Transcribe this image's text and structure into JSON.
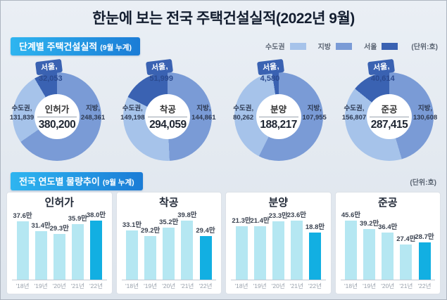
{
  "title": "한눈에 보는 전국 주택건설실적(2022년 9월)",
  "stage_section": {
    "header": "단계별 주택건설실적",
    "header_sub": "(9월 누계)"
  },
  "trend_section": {
    "header": "전국 연도별 물량추이",
    "header_sub": "(9월 누계)",
    "unit": "(단위:호)"
  },
  "legend": {
    "items": [
      {
        "label": "수도권",
        "color": "#A6C3EA"
      },
      {
        "label": "지방",
        "color": "#7A9BD6"
      },
      {
        "label": "서울",
        "color": "#3A62B2"
      }
    ],
    "unit": "(단위:호)"
  },
  "colors": {
    "sudogwon": "#A6C3EA",
    "jibang": "#7A9BD6",
    "seoul": "#3A62B2",
    "bar": "#B5E7F2",
    "bar_highlight": "#12AFE2"
  },
  "chart_data": [
    {
      "type": "pie",
      "title": "인허가",
      "total": 380200,
      "total_display": "380,200",
      "segments": [
        {
          "name": "지방",
          "label": "지방,",
          "value": 248361,
          "display": "248,361",
          "side": "right"
        },
        {
          "name": "수도권",
          "label": "수도권,",
          "value": 131839,
          "display": "131,839",
          "side": "left"
        },
        {
          "name": "서울",
          "label": "서울,",
          "value": 32053,
          "display": "32,053",
          "side": "top"
        }
      ]
    },
    {
      "type": "pie",
      "title": "착공",
      "total": 294059,
      "total_display": "294,059",
      "segments": [
        {
          "name": "지방",
          "label": "지방,",
          "value": 144861,
          "display": "144,861",
          "side": "right"
        },
        {
          "name": "수도권",
          "label": "수도권,",
          "value": 149198,
          "display": "149,198",
          "side": "left"
        },
        {
          "name": "서울",
          "label": "서울,",
          "value": 51999,
          "display": "51,999",
          "side": "top"
        }
      ]
    },
    {
      "type": "pie",
      "title": "분양",
      "total": 188217,
      "total_display": "188,217",
      "segments": [
        {
          "name": "지방",
          "label": "지방,",
          "value": 107955,
          "display": "107,955",
          "side": "right"
        },
        {
          "name": "수도권",
          "label": "수도권,",
          "value": 80262,
          "display": "80,262",
          "side": "left"
        },
        {
          "name": "서울",
          "label": "서울,",
          "value": 4580,
          "display": "4,580",
          "side": "top"
        }
      ]
    },
    {
      "type": "pie",
      "title": "준공",
      "total": 287415,
      "total_display": "287,415",
      "segments": [
        {
          "name": "지방",
          "label": "지방,",
          "value": 130608,
          "display": "130,608",
          "side": "right"
        },
        {
          "name": "수도권",
          "label": "수도권,",
          "value": 156807,
          "display": "156,807",
          "side": "left"
        },
        {
          "name": "서울",
          "label": "서울,",
          "value": 40614,
          "display": "40,614",
          "side": "top"
        }
      ]
    },
    {
      "type": "bar",
      "title": "인허가",
      "categories": [
        "'18년",
        "'19년",
        "'20년",
        "'21년",
        "'22년"
      ],
      "values": [
        37.6,
        31.4,
        29.3,
        35.9,
        38.0
      ],
      "labels": [
        "37.6만",
        "31.4만",
        "29.3만",
        "35.9만",
        "38.0만"
      ],
      "highlight_index": 4
    },
    {
      "type": "bar",
      "title": "착공",
      "categories": [
        "'18년",
        "'19년",
        "'20년",
        "'21년",
        "'22년"
      ],
      "values": [
        33.1,
        29.2,
        35.2,
        39.8,
        29.4
      ],
      "labels": [
        "33.1만",
        "29.2만",
        "35.2만",
        "39.8만",
        "29.4만"
      ],
      "highlight_index": 4
    },
    {
      "type": "bar",
      "title": "분양",
      "categories": [
        "'18년",
        "'19년",
        "'20년",
        "'21년",
        "'22년"
      ],
      "values": [
        21.3,
        21.4,
        23.3,
        23.6,
        18.8
      ],
      "labels": [
        "21.3만",
        "21.4만",
        "23.3만",
        "23.6만",
        "18.8만"
      ],
      "highlight_index": 4
    },
    {
      "type": "bar",
      "title": "준공",
      "categories": [
        "'18년",
        "'19년",
        "'20년",
        "'21년",
        "'22년"
      ],
      "values": [
        45.6,
        39.2,
        36.4,
        27.4,
        28.7
      ],
      "labels": [
        "45.6만",
        "39.2만",
        "36.4만",
        "27.4만",
        "28.7만"
      ],
      "highlight_index": 4
    }
  ]
}
